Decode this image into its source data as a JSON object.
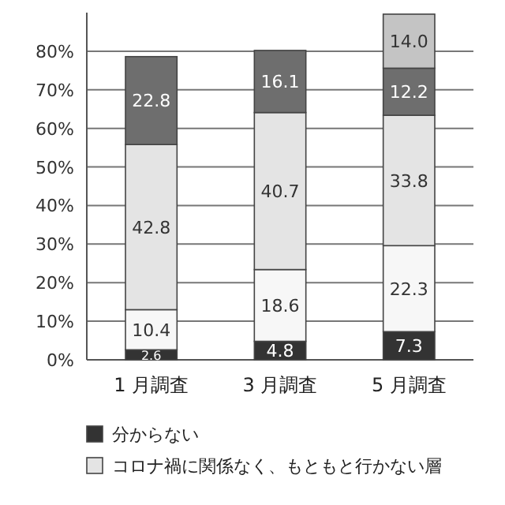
{
  "chart_data": {
    "type": "bar",
    "stacked": true,
    "categories": [
      "1 月調査",
      "3 月調査",
      "5 月調査"
    ],
    "series": [
      {
        "name": "分からない",
        "color": "#333333",
        "values": [
          2.6,
          4.8,
          7.3
        ],
        "value_labels": [
          "2.6",
          "4.8",
          "7.3"
        ]
      },
      {
        "color": "#f7f7f7",
        "values": [
          10.4,
          18.6,
          22.3
        ],
        "value_labels": [
          "10.4",
          "18.6",
          "22.3"
        ]
      },
      {
        "name": "コロナ禍に関係なく、もともと行かない層",
        "color": "#e4e4e4",
        "values": [
          42.8,
          40.7,
          33.8
        ],
        "value_labels": [
          "42.8",
          "40.7",
          "33.8"
        ]
      },
      {
        "color": "#6e6e6e",
        "values": [
          22.8,
          16.1,
          12.2
        ],
        "value_labels": [
          "22.8",
          "16.1",
          "12.2"
        ]
      },
      {
        "color": "#c4c4c4",
        "values": [
          null,
          null,
          14.0
        ],
        "value_labels": [
          null,
          null,
          "14.0"
        ]
      }
    ],
    "ylim": [
      0,
      90
    ],
    "yticks": [
      {
        "value": 0,
        "label": "0%"
      },
      {
        "value": 10,
        "label": "10%"
      },
      {
        "value": 20,
        "label": "20%"
      },
      {
        "value": 30,
        "label": "30%"
      },
      {
        "value": 40,
        "label": "40%"
      },
      {
        "value": 50,
        "label": "50%"
      },
      {
        "value": 60,
        "label": "60%"
      },
      {
        "value": 70,
        "label": "70%"
      },
      {
        "value": 80,
        "label": "80%"
      }
    ],
    "grid": "y",
    "legend": "bottom"
  }
}
